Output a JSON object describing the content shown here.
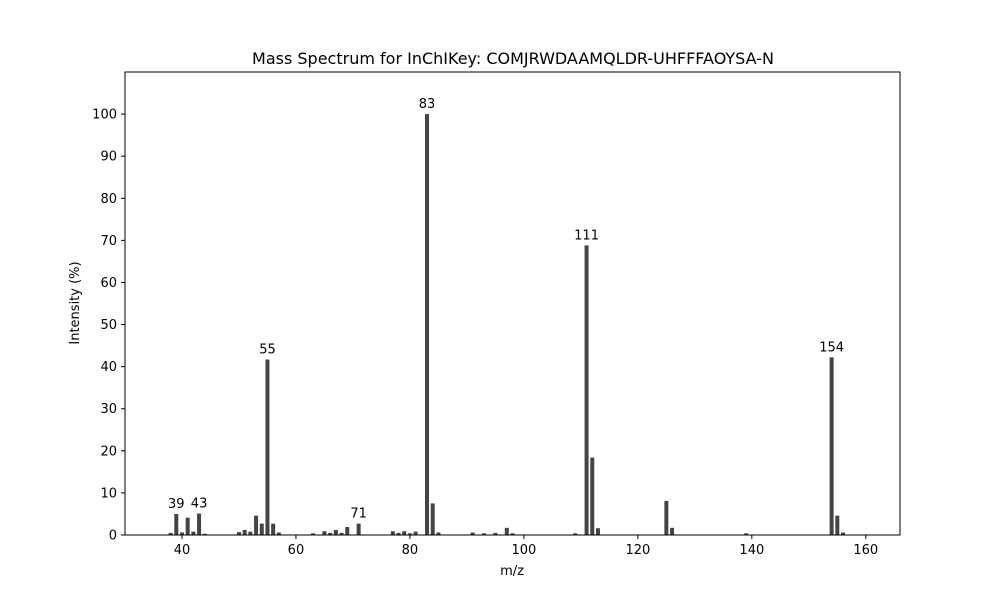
{
  "chart_data": {
    "type": "bar",
    "title": "Mass Spectrum for InChIKey: COMJRWDAAMQLDR-UHFFFAOYSA-N",
    "xlabel": "m/z",
    "ylabel": "Intensity (%)",
    "xlim": [
      30,
      166
    ],
    "ylim": [
      0,
      110
    ],
    "xticks": [
      40,
      60,
      80,
      100,
      120,
      140,
      160
    ],
    "yticks": [
      0,
      10,
      20,
      30,
      40,
      50,
      60,
      70,
      80,
      90,
      100
    ],
    "grid": false,
    "bar_color": "#444444",
    "peaks": [
      {
        "mz": 38,
        "intensity": 0.5
      },
      {
        "mz": 39,
        "intensity": 5.0,
        "label": "39"
      },
      {
        "mz": 40,
        "intensity": 0.6
      },
      {
        "mz": 41,
        "intensity": 4.1
      },
      {
        "mz": 42,
        "intensity": 0.8
      },
      {
        "mz": 43,
        "intensity": 5.1,
        "label": "43"
      },
      {
        "mz": 44,
        "intensity": 0.3
      },
      {
        "mz": 50,
        "intensity": 0.7
      },
      {
        "mz": 51,
        "intensity": 1.2
      },
      {
        "mz": 52,
        "intensity": 0.8
      },
      {
        "mz": 53,
        "intensity": 4.6
      },
      {
        "mz": 54,
        "intensity": 2.7
      },
      {
        "mz": 55,
        "intensity": 41.7,
        "label": "55"
      },
      {
        "mz": 56,
        "intensity": 2.7
      },
      {
        "mz": 57,
        "intensity": 0.6
      },
      {
        "mz": 63,
        "intensity": 0.4
      },
      {
        "mz": 65,
        "intensity": 0.9
      },
      {
        "mz": 66,
        "intensity": 0.5
      },
      {
        "mz": 67,
        "intensity": 1.2
      },
      {
        "mz": 68,
        "intensity": 0.5
      },
      {
        "mz": 69,
        "intensity": 1.9
      },
      {
        "mz": 71,
        "intensity": 2.7,
        "label": "71"
      },
      {
        "mz": 77,
        "intensity": 0.9
      },
      {
        "mz": 78,
        "intensity": 0.5
      },
      {
        "mz": 79,
        "intensity": 0.9
      },
      {
        "mz": 80,
        "intensity": 0.4
      },
      {
        "mz": 81,
        "intensity": 0.8
      },
      {
        "mz": 83,
        "intensity": 100.0,
        "label": "83"
      },
      {
        "mz": 84,
        "intensity": 7.5
      },
      {
        "mz": 85,
        "intensity": 0.6
      },
      {
        "mz": 91,
        "intensity": 0.6
      },
      {
        "mz": 93,
        "intensity": 0.4
      },
      {
        "mz": 95,
        "intensity": 0.5
      },
      {
        "mz": 97,
        "intensity": 1.7
      },
      {
        "mz": 98,
        "intensity": 0.4
      },
      {
        "mz": 109,
        "intensity": 0.4
      },
      {
        "mz": 111,
        "intensity": 68.8,
        "label": "111"
      },
      {
        "mz": 112,
        "intensity": 18.4
      },
      {
        "mz": 113,
        "intensity": 1.6
      },
      {
        "mz": 125,
        "intensity": 8.1
      },
      {
        "mz": 126,
        "intensity": 1.7
      },
      {
        "mz": 139,
        "intensity": 0.4
      },
      {
        "mz": 154,
        "intensity": 42.2,
        "label": "154"
      },
      {
        "mz": 155,
        "intensity": 4.6
      },
      {
        "mz": 156,
        "intensity": 0.6
      }
    ]
  }
}
